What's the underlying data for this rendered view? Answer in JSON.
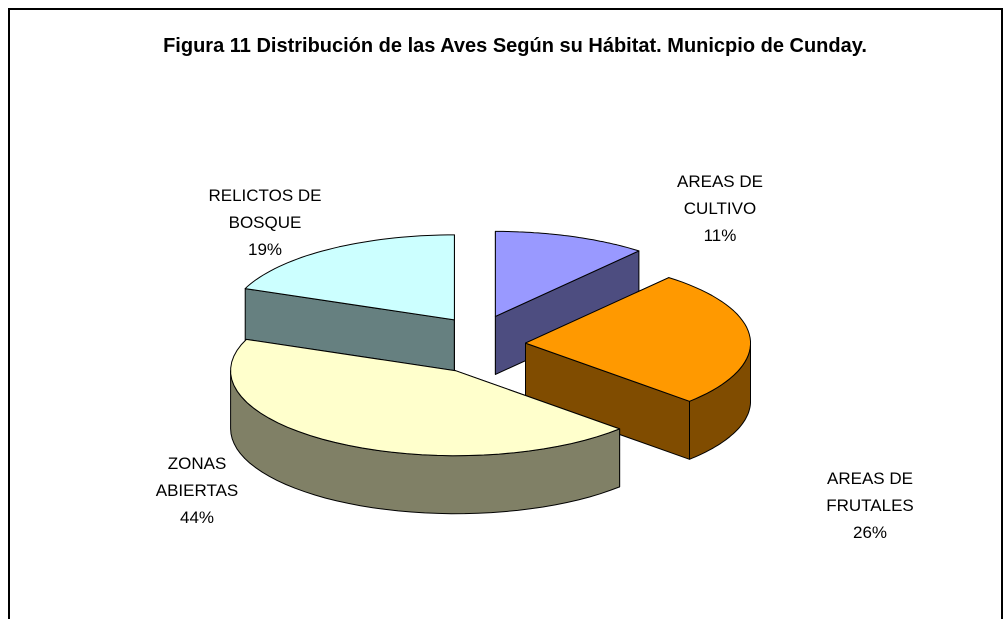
{
  "chart_data": {
    "type": "pie3d",
    "title": "Figura 11  Distribución de las Aves Según su Hábitat. Municpio de Cunday.",
    "categories": [
      "AREAS DE CULTIVO",
      "AREAS DE FRUTALES",
      "ZONAS ABIERTAS",
      "RELICTOS DE BOSQUE"
    ],
    "values": [
      11,
      26,
      44,
      19
    ],
    "value_labels": [
      "11%",
      "26%",
      "44%",
      "19%"
    ],
    "colors": [
      "#9999ff",
      "#ff9900",
      "#ffffcc",
      "#ccffff"
    ],
    "side_colors": [
      "#4d4d80",
      "#804c00",
      "#808066",
      "#668080"
    ]
  }
}
